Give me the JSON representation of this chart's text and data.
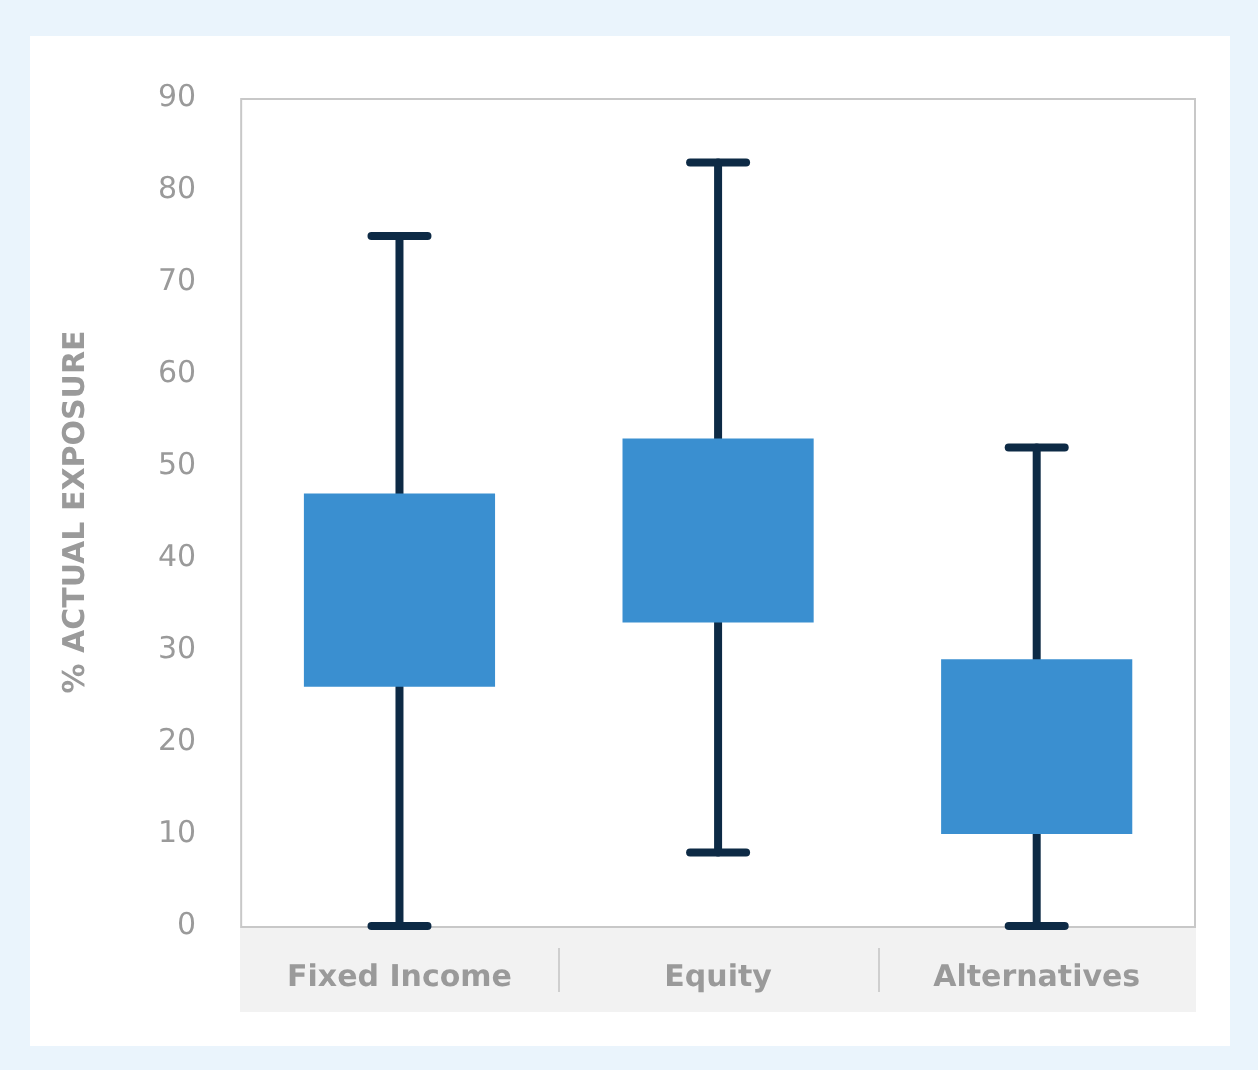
{
  "chart_data": {
    "type": "box",
    "ylabel": "% ACTUAL EXPOSURE",
    "categories": [
      "Fixed Income",
      "Equity",
      "Alternatives"
    ],
    "color": "#3a8fd0",
    "boxes": [
      {
        "low": 0,
        "q1": 26,
        "q3": 47,
        "high": 75
      },
      {
        "low": 8,
        "q1": 33,
        "q3": 53,
        "high": 83
      },
      {
        "low": 0,
        "q1": 10,
        "q3": 29,
        "high": 52
      }
    ],
    "ylim": [
      0,
      90
    ],
    "yticks": [
      0,
      10,
      20,
      30,
      40,
      50,
      60,
      70,
      80,
      90
    ],
    "grid": false,
    "legend": false
  }
}
